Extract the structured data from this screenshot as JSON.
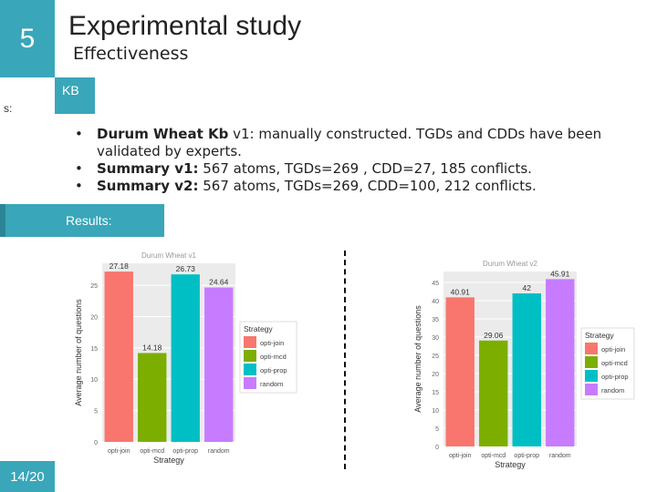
{
  "slide": {
    "number": "5",
    "title": "Experimental study",
    "subtitle": "Effectiveness",
    "side_tab_text": "s:",
    "kb_tab_label": "KB",
    "results_label": "Results:",
    "page_indicator": "14/20"
  },
  "bullets": [
    {
      "bold": "Durum Wheat Kb",
      "text": " v1: manually constructed. TGDs and CDDs have been validated by experts."
    },
    {
      "bold": "Summary v1:",
      "text": " 567 atoms, TGDs=269 , CDD=27, 185 conflicts."
    },
    {
      "bold": "Summary v2:",
      "text": " 567 atoms, TGDs=269, CDD=100, 212 conflicts."
    }
  ],
  "colors": {
    "accent": "#3aa6b9",
    "opti_join": "#f8766d",
    "opti_mcd": "#7cae00",
    "opti_prop": "#00bfc4",
    "random": "#c77cff"
  },
  "chart_data": [
    {
      "type": "bar",
      "title": "Durum Wheat v1",
      "categories": [
        "opti-join",
        "opti-mcd",
        "opti-prop",
        "random"
      ],
      "values": [
        27.18,
        14.18,
        26.73,
        24.64
      ],
      "value_labels": [
        "27.18",
        "14.18",
        "26.73",
        "24.64"
      ],
      "xlabel": "Strategy",
      "ylabel": "Average number of questions",
      "ylim": [
        0,
        28.5
      ],
      "yticks": [
        0,
        5,
        10,
        15,
        20,
        25
      ],
      "legend": {
        "title": "Strategy",
        "placement": "right"
      }
    },
    {
      "type": "bar",
      "title": "Durum Wheat v2",
      "categories": [
        "opti-join",
        "opti-mcd",
        "opti-prop",
        "random"
      ],
      "values": [
        40.91,
        29.06,
        42,
        45.91
      ],
      "value_labels": [
        "40.91",
        "29.06",
        "42",
        "45.91"
      ],
      "xlabel": "Strategy",
      "ylabel": "Average number of questions",
      "ylim": [
        0,
        48
      ],
      "yticks": [
        0,
        5,
        10,
        15,
        20,
        25,
        30,
        35,
        40,
        45
      ],
      "legend": {
        "title": "Strategy",
        "placement": "right"
      }
    }
  ]
}
